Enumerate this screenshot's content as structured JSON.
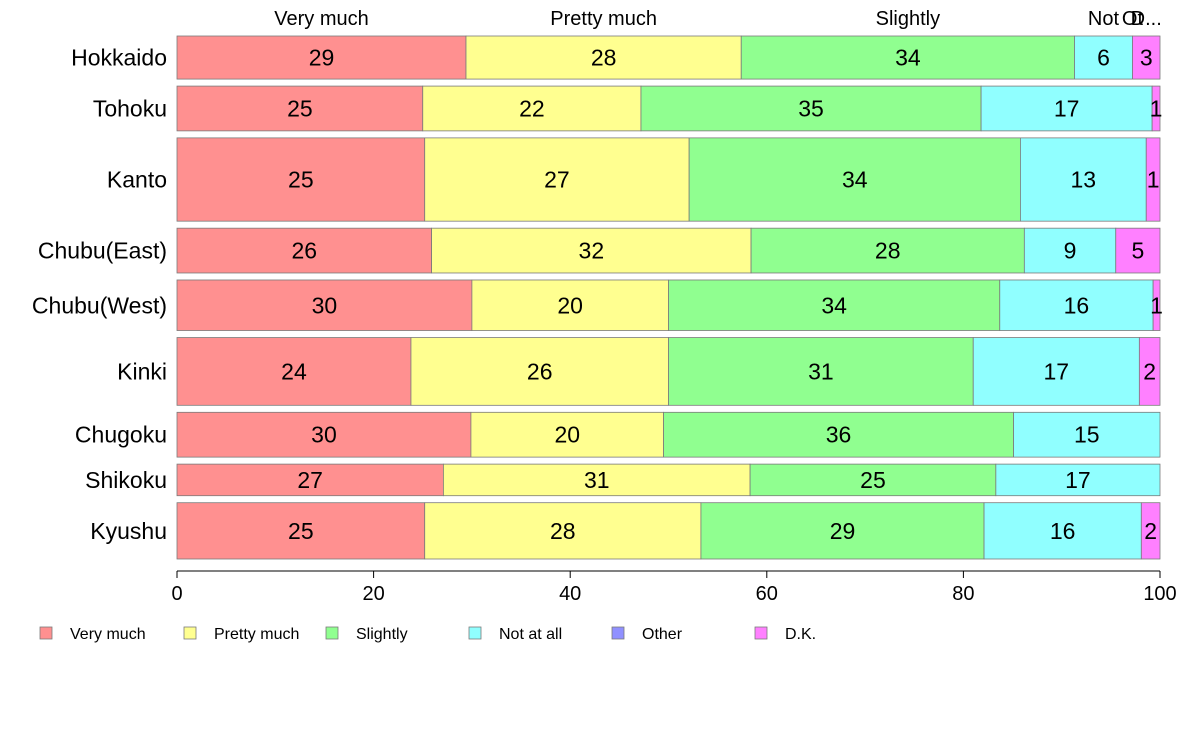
{
  "chart_data": {
    "type": "bar",
    "orientation": "horizontal",
    "stacked": true,
    "categories": [
      "Hokkaido",
      "Tohoku",
      "Kanto",
      "Chubu(East)",
      "Chubu(West)",
      "Kinki",
      "Chugoku",
      "Shikoku",
      "Kyushu"
    ],
    "category_weights": [
      0.75,
      0.78,
      1.45,
      0.78,
      0.88,
      1.18,
      0.78,
      0.55,
      0.98
    ],
    "series": [
      {
        "name": "Very much",
        "color": "#ff9090",
        "values": [
          29.4,
          25.0,
          25.2,
          25.9,
          30.0,
          23.8,
          29.9,
          27.1,
          25.2
        ],
        "labels": [
          "29",
          "25",
          "25",
          "26",
          "30",
          "24",
          "30",
          "27",
          "25"
        ]
      },
      {
        "name": "Pretty much",
        "color": "#ffff90",
        "values": [
          28.0,
          22.2,
          26.9,
          32.5,
          20.0,
          26.2,
          19.6,
          31.2,
          28.1
        ],
        "labels": [
          "28",
          "22",
          "27",
          "32",
          "20",
          "26",
          "20",
          "31",
          "28"
        ]
      },
      {
        "name": "Slightly",
        "color": "#90ff90",
        "values": [
          33.9,
          34.6,
          33.7,
          27.8,
          33.7,
          31.0,
          35.6,
          25.0,
          28.8
        ],
        "labels": [
          "34",
          "35",
          "34",
          "28",
          "34",
          "31",
          "36",
          "25",
          "29"
        ]
      },
      {
        "name": "Not at all",
        "color": "#90ffff",
        "values": [
          5.9,
          17.4,
          12.8,
          9.3,
          15.6,
          16.9,
          14.9,
          16.7,
          16.0
        ],
        "labels": [
          "6",
          "17",
          "13",
          "9",
          "16",
          "17",
          "15",
          "17",
          "16"
        ]
      },
      {
        "name": "Other",
        "color": "#9090ff",
        "values": [
          0,
          0,
          0,
          0,
          0,
          0,
          0,
          0,
          0
        ],
        "labels": [
          "",
          "",
          "",
          "",
          "",
          "",
          "",
          "",
          ""
        ]
      },
      {
        "name": "D.K.",
        "color": "#ff80ff",
        "values": [
          2.8,
          0.8,
          1.4,
          4.5,
          0.7,
          2.1,
          0,
          0,
          1.9
        ],
        "labels": [
          "3",
          "1",
          "1",
          "5",
          "1",
          "2",
          "",
          "",
          "2"
        ]
      }
    ],
    "top_labels": [
      "Very much",
      "Pretty much",
      "Slightly",
      "Not at all",
      "Other",
      "D.K."
    ],
    "top_labels_display": [
      "Very much",
      "Pretty much",
      "Slightly",
      "Not",
      "Ot",
      "D..."
    ],
    "xlim": [
      0,
      100
    ],
    "xticks": [
      0,
      20,
      40,
      60,
      80,
      100
    ],
    "xlabel": "",
    "ylabel": "",
    "title": "",
    "grid": false,
    "legend_position": "bottom-left"
  }
}
